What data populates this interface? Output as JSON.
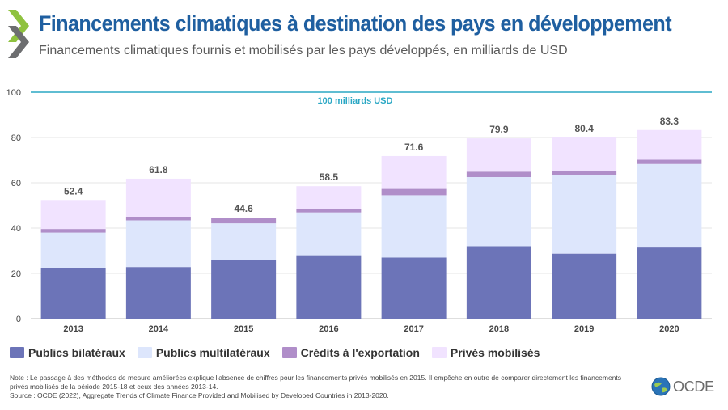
{
  "header": {
    "title": "Financements climatiques à destination des pays en développement",
    "subtitle": "Financements climatiques fournis et mobilisés par les pays développés, en milliards de USD"
  },
  "chart_data": {
    "type": "bar",
    "stacked": true,
    "categories": [
      "2013",
      "2014",
      "2015",
      "2016",
      "2017",
      "2018",
      "2019",
      "2020"
    ],
    "series": [
      {
        "name": "Publics bilatéraux",
        "color": "#6c74b8",
        "values": [
          22.5,
          22.8,
          25.9,
          28.0,
          27.0,
          32.0,
          28.7,
          31.4
        ]
      },
      {
        "name": "Publics multilatéraux",
        "color": "#dde6fc",
        "values": [
          15.5,
          20.6,
          16.2,
          18.9,
          27.5,
          30.5,
          34.6,
          36.9
        ]
      },
      {
        "name": "Crédits à l'exportation",
        "color": "#b08ec9",
        "values": [
          1.6,
          1.6,
          2.5,
          1.5,
          2.8,
          2.4,
          2.1,
          1.9
        ]
      },
      {
        "name": "Privés mobilisés",
        "color": "#f1e3ff",
        "values": [
          12.8,
          16.8,
          null,
          10.1,
          14.5,
          14.7,
          14.6,
          13.1
        ]
      }
    ],
    "totals": [
      "52.4",
      "61.8",
      "44.6",
      "58.5",
      "71.6",
      "79.9",
      "80.4",
      "83.3"
    ],
    "ylim": [
      0,
      100
    ],
    "yticks": [
      "0",
      "20",
      "40",
      "60",
      "80",
      "100"
    ],
    "reference_line": {
      "value": 100,
      "label": "100 milliards USD",
      "color": "#2aa7c4"
    },
    "grid": true,
    "legend_position": "bottom"
  },
  "footer": {
    "note": "Note : Le passage à des méthodes de mesure améliorées explique l'absence de chiffres pour les financements privés mobilisés en 2015. Il empêche en outre de comparer directement les financements privés mobilisés de la période 2015-18 et ceux des années 2013-14.",
    "source_prefix": "Source : OCDE (2022), ",
    "source_link": "Aggregate Trends of Climate Finance Provided and Mobilised by Developed Countries in 2013-2020",
    "source_suffix": ".",
    "logo_text": "OCDE"
  }
}
